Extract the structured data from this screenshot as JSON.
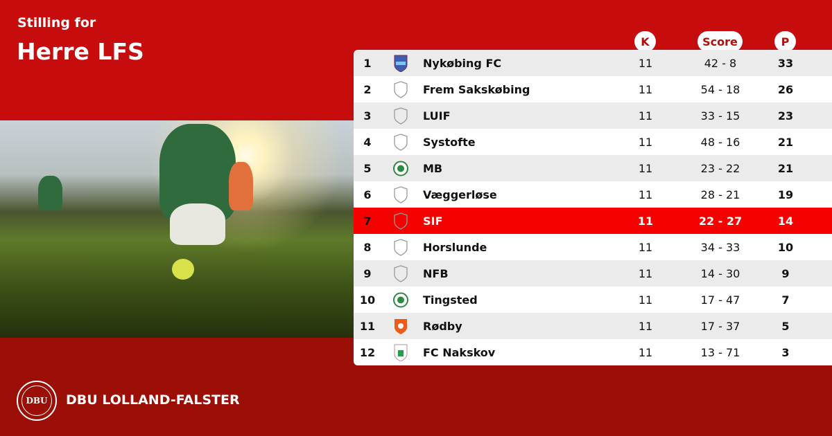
{
  "header": {
    "subtitle": "Stilling for",
    "title": "Herre LFS"
  },
  "columns": {
    "k": "K",
    "score": "Score",
    "p": "P"
  },
  "highlight_color": "#f70000",
  "rows": [
    {
      "rank": "1",
      "team": "Nykøbing FC",
      "k": "11",
      "score": "42 - 8",
      "p": "33",
      "logo": "nfc-crest"
    },
    {
      "rank": "2",
      "team": "Frem Sakskøbing",
      "k": "11",
      "score": "54 - 18",
      "p": "26",
      "logo": "placeholder-shield"
    },
    {
      "rank": "3",
      "team": "LUIF",
      "k": "11",
      "score": "33 - 15",
      "p": "23",
      "logo": "placeholder-shield"
    },
    {
      "rank": "4",
      "team": "Systofte",
      "k": "11",
      "score": "48 - 16",
      "p": "21",
      "logo": "placeholder-shield"
    },
    {
      "rank": "5",
      "team": "MB",
      "k": "11",
      "score": "23 - 22",
      "p": "21",
      "logo": "green-round-crest"
    },
    {
      "rank": "6",
      "team": "Væggerløse",
      "k": "11",
      "score": "28 - 21",
      "p": "19",
      "logo": "placeholder-shield"
    },
    {
      "rank": "7",
      "team": "SIF",
      "k": "11",
      "score": "22 - 27",
      "p": "14",
      "logo": "placeholder-shield",
      "highlighted": true
    },
    {
      "rank": "8",
      "team": "Horslunde",
      "k": "11",
      "score": "34 - 33",
      "p": "10",
      "logo": "placeholder-shield"
    },
    {
      "rank": "9",
      "team": "NFB",
      "k": "11",
      "score": "14 - 30",
      "p": "9",
      "logo": "placeholder-shield"
    },
    {
      "rank": "10",
      "team": "Tingsted",
      "k": "11",
      "score": "17 - 47",
      "p": "7",
      "logo": "green-round-crest"
    },
    {
      "rank": "11",
      "team": "Rødby",
      "k": "11",
      "score": "17 - 37",
      "p": "5",
      "logo": "orange-crest"
    },
    {
      "rank": "12",
      "team": "FC Nakskov",
      "k": "11",
      "score": "13 - 71",
      "p": "3",
      "logo": "white-green-crest"
    }
  ],
  "footer": {
    "brand": "DBU LOLLAND-FALSTER",
    "seal_text": "DBU"
  }
}
